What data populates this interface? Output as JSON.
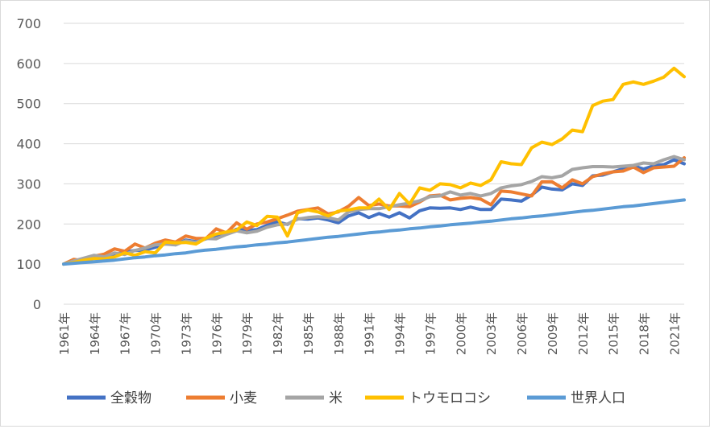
{
  "chart_data": {
    "type": "line",
    "title": "",
    "xlabel": "",
    "ylabel": "",
    "ylim": [
      0,
      700
    ],
    "yticks": [
      0,
      100,
      200,
      300,
      400,
      500,
      600,
      700
    ],
    "grid": true,
    "legend_position": "bottom",
    "x": [
      "1961年",
      "1962年",
      "1963年",
      "1964年",
      "1965年",
      "1966年",
      "1967年",
      "1968年",
      "1969年",
      "1970年",
      "1971年",
      "1972年",
      "1973年",
      "1974年",
      "1975年",
      "1976年",
      "1977年",
      "1978年",
      "1979年",
      "1980年",
      "1981年",
      "1982年",
      "1983年",
      "1984年",
      "1985年",
      "1986年",
      "1987年",
      "1988年",
      "1989年",
      "1990年",
      "1991年",
      "1992年",
      "1993年",
      "1994年",
      "1995年",
      "1996年",
      "1997年",
      "1998年",
      "1999年",
      "2000年",
      "2001年",
      "2002年",
      "2003年",
      "2004年",
      "2005年",
      "2006年",
      "2007年",
      "2008年",
      "2009年",
      "2010年",
      "2011年",
      "2012年",
      "2013年",
      "2014年",
      "2015年",
      "2016年",
      "2017年",
      "2018年",
      "2019年",
      "2020年",
      "2021年",
      "2022年"
    ],
    "x_tick_labels": [
      "1961年",
      "1964年",
      "1967年",
      "1970年",
      "1973年",
      "1976年",
      "1979年",
      "1982年",
      "1985年",
      "1988年",
      "1991年",
      "1994年",
      "1997年",
      "2000年",
      "2003年",
      "2006年",
      "2009年",
      "2012年",
      "2015年",
      "2018年",
      "2021年"
    ],
    "series": [
      {
        "name": "全穀物",
        "color": "#4472c4",
        "values": [
          100,
          105,
          108,
          116,
          114,
          124,
          130,
          134,
          135,
          142,
          151,
          148,
          160,
          156,
          163,
          172,
          176,
          187,
          184,
          186,
          197,
          205,
          199,
          213,
          212,
          215,
          210,
          203,
          220,
          228,
          216,
          226,
          217,
          228,
          215,
          233,
          240,
          239,
          240,
          236,
          242,
          236,
          236,
          262,
          260,
          257,
          272,
          292,
          287,
          285,
          300,
          296,
          320,
          322,
          330,
          338,
          345,
          337,
          345,
          348,
          360,
          350
        ]
      },
      {
        "name": "小麦",
        "color": "#ed7d31",
        "values": [
          100,
          112,
          108,
          120,
          125,
          138,
          132,
          150,
          140,
          152,
          160,
          155,
          170,
          164,
          164,
          188,
          178,
          203,
          187,
          200,
          205,
          213,
          222,
          232,
          236,
          240,
          225,
          230,
          244,
          266,
          246,
          250,
          245,
          245,
          243,
          255,
          270,
          272,
          260,
          264,
          266,
          262,
          248,
          282,
          280,
          275,
          270,
          305,
          305,
          290,
          310,
          300,
          318,
          325,
          330,
          332,
          342,
          328,
          340,
          342,
          344,
          365
        ]
      },
      {
        "name": "米",
        "color": "#a5a5a5",
        "values": [
          100,
          108,
          115,
          122,
          118,
          128,
          124,
          134,
          140,
          148,
          150,
          148,
          158,
          154,
          164,
          163,
          174,
          183,
          178,
          182,
          192,
          198,
          200,
          212,
          216,
          218,
          216,
          210,
          230,
          236,
          238,
          238,
          243,
          248,
          252,
          258,
          268,
          270,
          280,
          272,
          276,
          270,
          276,
          290,
          295,
          298,
          306,
          318,
          315,
          320,
          336,
          340,
          343,
          343,
          342,
          344,
          346,
          352,
          350,
          360,
          368,
          360
        ]
      },
      {
        "name": "トウモロコシ",
        "color": "#ffc000",
        "values": [
          100,
          104,
          110,
          114,
          113,
          118,
          128,
          122,
          131,
          128,
          155,
          153,
          154,
          150,
          165,
          175,
          180,
          185,
          205,
          196,
          219,
          217,
          170,
          228,
          235,
          230,
          220,
          232,
          235,
          240,
          240,
          262,
          236,
          276,
          250,
          290,
          284,
          300,
          298,
          290,
          302,
          296,
          310,
          355,
          350,
          348,
          390,
          404,
          398,
          412,
          434,
          430,
          495,
          506,
          510,
          548,
          554,
          548,
          556,
          566,
          588,
          567
        ]
      },
      {
        "name": "世界人口",
        "color": "#5b9bd5",
        "values": [
          100,
          102,
          104,
          106,
          108,
          110,
          113,
          116,
          118,
          121,
          123,
          126,
          128,
          132,
          135,
          137,
          140,
          143,
          145,
          148,
          150,
          153,
          155,
          158,
          161,
          164,
          167,
          169,
          172,
          175,
          178,
          180,
          183,
          185,
          188,
          190,
          193,
          195,
          198,
          200,
          202,
          205,
          207,
          210,
          213,
          215,
          218,
          220,
          223,
          226,
          229,
          232,
          234,
          237,
          240,
          243,
          245,
          248,
          251,
          254,
          257,
          260
        ]
      }
    ]
  }
}
